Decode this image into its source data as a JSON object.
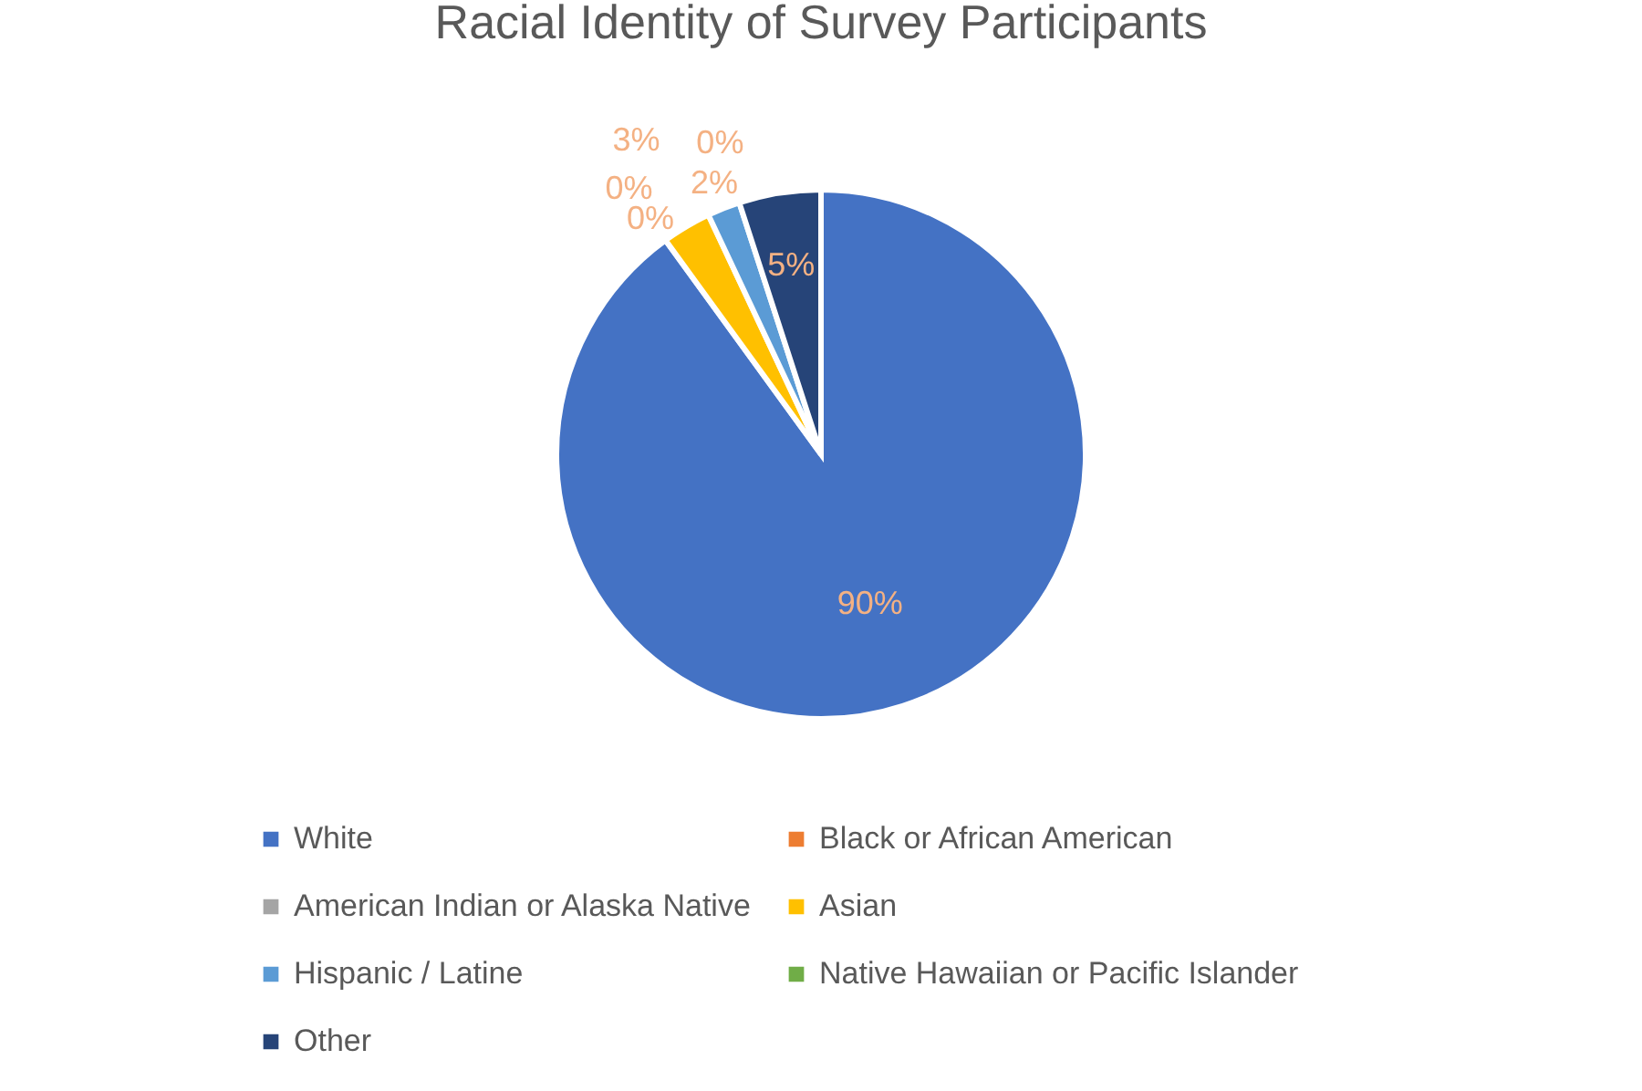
{
  "chart_data": {
    "type": "pie",
    "title": "Racial Identity of Survey Participants",
    "categories": [
      "White",
      "Black or African American",
      "American Indian or Alaska Native",
      "Asian",
      "Hispanic / Latine",
      "Native Hawaiian or Pacific Islander",
      "Other"
    ],
    "values": [
      90,
      0,
      0,
      3,
      2,
      0,
      5
    ],
    "value_labels": [
      "90%",
      "0%",
      "0%",
      "3%",
      "2%",
      "0%",
      "5%"
    ],
    "colors": [
      "#4472c4",
      "#ed7d31",
      "#a5a5a5",
      "#ffc000",
      "#5b9bd5",
      "#70ad47",
      "#264478"
    ],
    "legend": "bottom"
  }
}
